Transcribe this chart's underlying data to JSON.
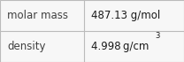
{
  "rows": [
    {
      "label": "molar mass",
      "value": "487.13 g/mol",
      "superscript": null
    },
    {
      "label": "density",
      "value": "4.998 g/cm",
      "superscript": "3"
    }
  ],
  "background_color": "#f7f7f7",
  "border_color": "#bbbbbb",
  "label_color": "#404040",
  "value_color": "#1a1a1a",
  "font_size": 8.5,
  "col_split": 0.455
}
